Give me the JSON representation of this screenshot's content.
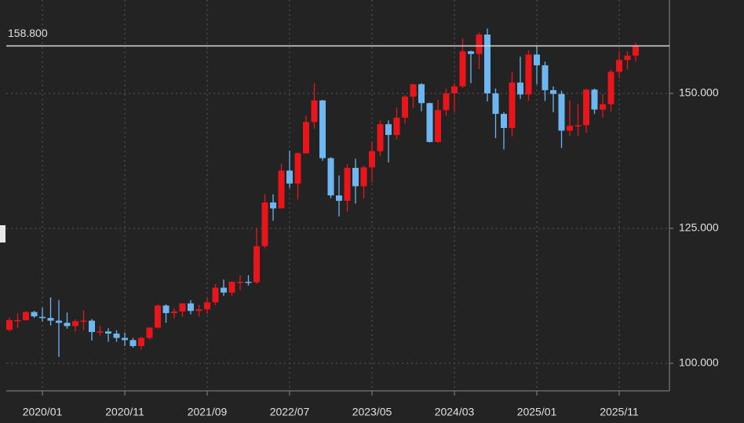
{
  "chart_data": {
    "type": "candlestick",
    "categories": [
      null,
      null,
      null,
      null,
      "2020/01",
      null,
      null,
      null,
      null,
      null,
      null,
      null,
      null,
      null,
      "2020/11",
      null,
      null,
      null,
      null,
      null,
      null,
      null,
      null,
      null,
      "2021/09",
      null,
      null,
      null,
      null,
      null,
      null,
      null,
      null,
      null,
      "2022/07",
      null,
      null,
      null,
      null,
      null,
      null,
      null,
      null,
      null,
      "2023/05",
      null,
      null,
      null,
      null,
      null,
      null,
      null,
      null,
      null,
      "2024/03",
      null,
      null,
      null,
      null,
      null,
      null,
      null,
      null,
      null,
      "2025/01",
      null,
      null,
      null,
      null,
      null,
      null,
      null,
      null,
      null,
      "2025/11",
      null,
      null
    ],
    "open": [
      106.2,
      108.0,
      108.0,
      109.5,
      108.6,
      108.4,
      107.9,
      107.5,
      106.9,
      107.8,
      107.9,
      105.8,
      105.9,
      105.5,
      104.7,
      104.3,
      103.2,
      104.7,
      106.6,
      110.7,
      109.3,
      109.6,
      111.1,
      109.7,
      110.0,
      111.3,
      114.0,
      113.1,
      115.1,
      115.1,
      115.0,
      121.7,
      129.8,
      128.7,
      135.7,
      133.3,
      138.9,
      144.7,
      148.7,
      138.0,
      131.1,
      130.1,
      136.2,
      132.8,
      136.3,
      139.3,
      144.3,
      142.3,
      145.5,
      149.4,
      151.7,
      148.2,
      141.0,
      146.9,
      150.0,
      151.3,
      157.8,
      157.3,
      160.9,
      150.0,
      146.2,
      143.6,
      152.0,
      149.8,
      157.2,
      155.2,
      150.6,
      149.9,
      143.1,
      144.0,
      144.1,
      150.7,
      147.0,
      148.0,
      154.0,
      156.2,
      157.0
    ],
    "high": [
      108.5,
      109.3,
      109.7,
      109.7,
      110.3,
      112.2,
      111.7,
      109.4,
      108.1,
      109.8,
      108.2,
      107.0,
      106.5,
      106.1,
      105.7,
      104.7,
      104.9,
      106.7,
      110.9,
      110.9,
      110.2,
      111.1,
      111.7,
      110.8,
      112.1,
      114.7,
      115.5,
      115.2,
      116.3,
      116.3,
      125.1,
      131.3,
      131.3,
      137.0,
      139.4,
      139.1,
      145.9,
      151.9,
      148.8,
      138.2,
      134.8,
      136.9,
      137.9,
      136.6,
      140.9,
      145.0,
      145.0,
      147.4,
      149.7,
      151.7,
      151.9,
      148.3,
      148.8,
      150.9,
      151.9,
      160.2,
      157.9,
      161.3,
      162.0,
      150.9,
      146.5,
      153.9,
      156.8,
      158.0,
      158.9,
      155.9,
      151.3,
      150.5,
      148.7,
      148.0,
      150.9,
      150.9,
      149.9,
      154.4,
      157.9,
      157.8,
      159.4
    ],
    "low": [
      105.9,
      106.5,
      107.9,
      108.4,
      107.7,
      107.0,
      101.2,
      106.4,
      105.9,
      106.1,
      104.2,
      105.1,
      104.0,
      104.0,
      103.2,
      102.9,
      102.6,
      104.4,
      106.4,
      107.5,
      108.3,
      108.6,
      109.1,
      108.7,
      109.1,
      110.8,
      112.5,
      112.5,
      113.5,
      114.4,
      114.7,
      121.3,
      126.4,
      128.7,
      132.5,
      130.4,
      138.9,
      143.5,
      137.5,
      130.6,
      127.2,
      128.1,
      129.6,
      130.6,
      133.5,
      138.4,
      137.2,
      141.5,
      144.4,
      147.3,
      146.7,
      140.9,
      140.8,
      145.9,
      146.5,
      151.0,
      151.9,
      154.5,
      148.5,
      141.7,
      139.6,
      142.0,
      149.0,
      148.6,
      151.7,
      148.6,
      146.5,
      139.9,
      142.1,
      142.1,
      142.7,
      146.2,
      145.5,
      146.6,
      152.8,
      154.4,
      155.9
    ],
    "close": [
      108.0,
      108.0,
      109.5,
      108.7,
      108.4,
      107.9,
      107.5,
      106.9,
      107.8,
      107.9,
      105.8,
      105.9,
      105.5,
      104.7,
      104.3,
      103.2,
      104.7,
      106.6,
      110.7,
      109.3,
      109.6,
      111.1,
      109.7,
      110.0,
      111.3,
      114.0,
      113.1,
      115.1,
      115.1,
      115.0,
      121.7,
      129.8,
      128.7,
      135.7,
      133.3,
      138.9,
      144.7,
      148.7,
      138.0,
      131.1,
      130.1,
      136.2,
      132.8,
      136.3,
      139.3,
      144.3,
      142.3,
      145.5,
      149.4,
      151.7,
      148.2,
      141.0,
      146.9,
      150.0,
      151.3,
      157.8,
      157.3,
      160.9,
      150.0,
      146.2,
      143.6,
      152.0,
      149.8,
      157.2,
      155.2,
      150.6,
      149.9,
      143.1,
      144.0,
      144.1,
      150.7,
      147.0,
      148.0,
      154.0,
      156.2,
      157.0,
      158.8
    ],
    "up_color": "#e8161b",
    "down_color": "#6cb6f2",
    "ylim": [
      94.9,
      167.3
    ],
    "yticks": [
      {
        "value": 100,
        "label": "100.000"
      },
      {
        "value": 125,
        "label": "125.000"
      },
      {
        "value": 150,
        "label": "150.000"
      }
    ],
    "grid": true,
    "last_price": {
      "value": 158.8,
      "label": "158.800"
    }
  }
}
